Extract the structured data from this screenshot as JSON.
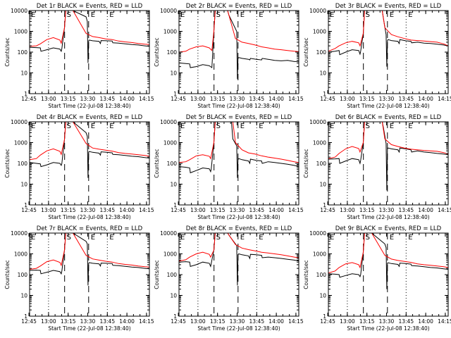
{
  "figure": {
    "panel_titles": [
      "Det 1r BLACK = Events, RED = LLD",
      "Det 2r BLACK = Events, RED = LLD",
      "Det 3r BLACK = Events, RED = LLD",
      "Det 4r BLACK = Events, RED = LLD",
      "Det 5r BLACK = Events, RED = LLD",
      "Det 6r BLACK = Events, RED = LLD",
      "Det 7r BLACK = Events, RED = LLD",
      "Det 8r BLACK = Events, RED = LLD",
      "Det 9r BLACK = Events, RED = LLD"
    ],
    "ylabel": "Counts/sec",
    "xlabel": "Start Time (22-Jul-08 12:38:40)",
    "xtick_labels": [
      "12:45",
      "13:00",
      "13:15",
      "13:30",
      "13:45",
      "14:00",
      "14:15"
    ],
    "ytick_labels": [
      "1",
      "10",
      "100",
      "1000",
      "10000"
    ]
  },
  "chart_data": {
    "type": "line",
    "y_scale": "log",
    "ylim": [
      1,
      10000
    ],
    "x_unit": "minutes after 12:38:40",
    "xlim": [
      6.8,
      98.5
    ],
    "xticks": [
      6.3,
      21.3,
      36.3,
      51.3,
      66.3,
      81.3,
      96.3
    ],
    "colors": {
      "events": "#000000",
      "lld": "#ff0000"
    },
    "markers": [
      {
        "x": 21.3,
        "style": "dotted",
        "label": ""
      },
      {
        "x": 33.6,
        "style": "dashed",
        "label": "S"
      },
      {
        "x": 52.0,
        "style": "dashed",
        "label": "E"
      },
      {
        "x": 66.3,
        "style": "dotted",
        "label": "E"
      }
    ],
    "panels": [
      {
        "detector": "1r",
        "events": {
          "x": [
            6.8,
            12,
            15,
            15.5,
            20,
            25,
            30,
            31,
            31.5,
            33.5,
            34.5,
            40,
            50,
            51,
            51.5,
            52,
            52.5,
            55,
            60,
            61,
            61.5,
            66,
            70,
            70.5,
            75,
            80,
            85,
            90,
            95,
            98.5
          ],
          "y": [
            170,
            165,
            160,
            110,
            130,
            160,
            140,
            110,
            150,
            1500,
            10000,
            10000,
            5000,
            3000,
            30,
            350,
            380,
            350,
            330,
            260,
            360,
            350,
            340,
            280,
            270,
            250,
            230,
            220,
            200,
            190
          ]
        },
        "lld": {
          "x": [
            6.8,
            12,
            15,
            20,
            25,
            30,
            31,
            33.5,
            34.5,
            40,
            50,
            55,
            60,
            65,
            70,
            75,
            80,
            85,
            90,
            95,
            98.5
          ],
          "y": [
            190,
            200,
            250,
            400,
            500,
            380,
            270,
            1500,
            10000,
            10000,
            800,
            560,
            500,
            430,
            400,
            340,
            310,
            290,
            260,
            240,
            230
          ]
        }
      },
      {
        "detector": "2r",
        "events": {
          "x": [
            6.8,
            12,
            15,
            15.5,
            20,
            25,
            30,
            32,
            33.5,
            34.5,
            44,
            45,
            51,
            51.5,
            52,
            52.5,
            55,
            60,
            61,
            61.5,
            66,
            70,
            70.5,
            75,
            80,
            85,
            90,
            95,
            98.5
          ],
          "y": [
            30,
            28,
            27,
            18,
            20,
            25,
            22,
            18,
            1000,
            10000,
            10000,
            6000,
            1000,
            5,
            50,
            55,
            50,
            45,
            42,
            50,
            45,
            42,
            50,
            45,
            40,
            38,
            40,
            35,
            35
          ]
        },
        "lld": {
          "x": [
            6.8,
            12,
            15,
            20,
            25,
            30,
            32,
            33.5,
            34.5,
            44,
            50,
            55,
            60,
            65,
            70,
            75,
            80,
            85,
            90,
            95,
            98.5
          ],
          "y": [
            100,
            110,
            140,
            180,
            200,
            160,
            120,
            1000,
            10000,
            10000,
            450,
            300,
            260,
            220,
            180,
            160,
            140,
            130,
            120,
            110,
            105
          ]
        }
      },
      {
        "detector": "3r",
        "events": {
          "x": [
            6.8,
            12,
            15,
            15.5,
            20,
            25,
            30,
            31,
            31.5,
            33.5,
            34.5,
            40,
            48,
            49,
            51,
            51.5,
            52,
            52.5,
            55,
            60,
            61,
            61.5,
            66,
            70,
            70.5,
            75,
            80,
            85,
            90,
            95,
            98.5
          ],
          "y": [
            100,
            110,
            120,
            75,
            100,
            130,
            120,
            80,
            110,
            800,
            10000,
            10000,
            10000,
            4000,
            700,
            20,
            350,
            400,
            360,
            330,
            260,
            400,
            350,
            330,
            280,
            300,
            270,
            260,
            240,
            220,
            200
          ]
        },
        "lld": {
          "x": [
            6.8,
            12,
            15,
            20,
            25,
            30,
            31,
            33.5,
            34.5,
            40,
            48,
            50,
            55,
            60,
            65,
            70,
            75,
            80,
            85,
            90,
            95,
            98.5
          ],
          "y": [
            110,
            150,
            200,
            280,
            330,
            280,
            200,
            800,
            10000,
            10000,
            10000,
            1500,
            700,
            550,
            450,
            380,
            360,
            340,
            320,
            300,
            250,
            200
          ]
        }
      },
      {
        "detector": "4r",
        "events": {
          "x": [
            6.8,
            12,
            15,
            15.5,
            20,
            25,
            30,
            31,
            31.5,
            33.5,
            34.5,
            40,
            50,
            51,
            51.5,
            52,
            52.5,
            55,
            60,
            61,
            61.5,
            66,
            70,
            70.5,
            75,
            80,
            85,
            90,
            95,
            98.5
          ],
          "y": [
            110,
            100,
            95,
            70,
            85,
            110,
            100,
            80,
            100,
            1400,
            10000,
            10000,
            3000,
            2000,
            20,
            350,
            370,
            340,
            310,
            250,
            360,
            340,
            320,
            270,
            260,
            240,
            220,
            210,
            190,
            180
          ]
        },
        "lld": {
          "x": [
            6.8,
            12,
            15,
            20,
            25,
            30,
            31,
            33.5,
            34.5,
            40,
            50,
            55,
            60,
            65,
            70,
            75,
            80,
            85,
            90,
            95,
            98.5
          ],
          "y": [
            150,
            170,
            250,
            400,
            500,
            380,
            270,
            1400,
            10000,
            10000,
            900,
            550,
            480,
            430,
            390,
            330,
            300,
            280,
            260,
            240,
            220
          ]
        }
      },
      {
        "detector": "5r",
        "events": {
          "x": [
            6.8,
            12,
            15,
            15.5,
            20,
            25,
            30,
            31,
            31.5,
            33.5,
            34.5,
            42,
            47,
            48,
            51,
            51.5,
            52,
            52.5,
            55,
            60,
            61,
            61.5,
            66,
            70,
            70.5,
            75,
            80,
            85,
            90,
            95,
            98.5
          ],
          "y": [
            70,
            65,
            60,
            35,
            45,
            60,
            55,
            40,
            55,
            1000,
            10000,
            10000,
            10000,
            1500,
            700,
            20,
            150,
            170,
            150,
            130,
            100,
            160,
            140,
            130,
            100,
            120,
            110,
            100,
            90,
            80,
            70
          ]
        },
        "lld": {
          "x": [
            6.8,
            12,
            15,
            20,
            25,
            30,
            31,
            33.5,
            34.5,
            42,
            48,
            50,
            55,
            60,
            65,
            70,
            75,
            80,
            85,
            90,
            95,
            98.5
          ],
          "y": [
            110,
            120,
            150,
            230,
            260,
            220,
            170,
            1000,
            10000,
            10000,
            10000,
            1000,
            450,
            320,
            280,
            230,
            200,
            180,
            160,
            140,
            120,
            110
          ]
        }
      },
      {
        "detector": "6r",
        "events": {
          "x": [
            6.8,
            12,
            15,
            15.5,
            20,
            25,
            30,
            31,
            31.5,
            33.5,
            34.5,
            40,
            48,
            49,
            51,
            51.5,
            52,
            52.5,
            55,
            60,
            61,
            61.5,
            66,
            70,
            70.5,
            75,
            80,
            85,
            90,
            95,
            98.5
          ],
          "y": [
            160,
            165,
            170,
            100,
            130,
            170,
            150,
            100,
            140,
            1000,
            10000,
            10000,
            10000,
            5000,
            900,
            5,
            500,
            550,
            500,
            450,
            350,
            550,
            500,
            450,
            350,
            400,
            350,
            330,
            300,
            280,
            260
          ]
        },
        "lld": {
          "x": [
            6.8,
            12,
            15,
            20,
            25,
            30,
            31,
            33.5,
            34.5,
            40,
            48,
            50,
            55,
            60,
            65,
            70,
            75,
            80,
            85,
            90,
            95,
            98.5
          ],
          "y": [
            170,
            200,
            300,
            500,
            650,
            520,
            350,
            1000,
            10000,
            10000,
            10000,
            1500,
            800,
            650,
            550,
            480,
            450,
            420,
            400,
            380,
            330,
            280
          ]
        }
      },
      {
        "detector": "7r",
        "events": {
          "x": [
            6.8,
            12,
            15,
            15.5,
            20,
            25,
            30,
            31,
            31.5,
            33.5,
            34.5,
            40,
            50,
            51,
            51.5,
            52,
            52.5,
            55,
            60,
            61,
            61.5,
            66,
            70,
            70.5,
            75,
            80,
            85,
            90,
            95,
            98.5
          ],
          "y": [
            160,
            165,
            160,
            110,
            130,
            160,
            140,
            110,
            150,
            1500,
            10000,
            10000,
            4000,
            3000,
            30,
            350,
            380,
            350,
            330,
            260,
            360,
            350,
            340,
            280,
            270,
            250,
            230,
            220,
            200,
            190
          ]
        },
        "lld": {
          "x": [
            6.8,
            12,
            15,
            20,
            25,
            30,
            31,
            33.5,
            34.5,
            40,
            50,
            55,
            60,
            65,
            70,
            75,
            80,
            85,
            90,
            95,
            98.5
          ],
          "y": [
            180,
            200,
            260,
            420,
            510,
            390,
            280,
            1500,
            10000,
            10000,
            850,
            570,
            500,
            440,
            400,
            340,
            310,
            290,
            260,
            240,
            230
          ]
        }
      },
      {
        "detector": "8r",
        "events": {
          "x": [
            6.8,
            12,
            15,
            15.5,
            20,
            25,
            30,
            31,
            31.5,
            33.5,
            34.5,
            44,
            45,
            51,
            51.5,
            52,
            52.5,
            55,
            60,
            61,
            61.5,
            66,
            70,
            70.5,
            75,
            80,
            85,
            90,
            95,
            98.5
          ],
          "y": [
            400,
            420,
            400,
            250,
            300,
            400,
            350,
            250,
            350,
            1500,
            10000,
            10000,
            8000,
            2500,
            30,
            900,
            1000,
            900,
            800,
            600,
            950,
            900,
            850,
            650,
            700,
            650,
            600,
            550,
            500,
            450
          ]
        },
        "lld": {
          "x": [
            6.8,
            12,
            15,
            20,
            25,
            30,
            31,
            33.5,
            34.5,
            44,
            50,
            55,
            60,
            65,
            70,
            75,
            80,
            85,
            90,
            95,
            98.5
          ],
          "y": [
            450,
            520,
            700,
            1000,
            1200,
            950,
            700,
            1500,
            10000,
            10000,
            2800,
            1900,
            1600,
            1400,
            1200,
            1100,
            1000,
            900,
            800,
            700,
            650
          ]
        }
      },
      {
        "detector": "9r",
        "events": {
          "x": [
            6.8,
            12,
            15,
            15.5,
            20,
            25,
            30,
            31,
            31.5,
            33.5,
            34.5,
            40,
            50,
            51,
            51.5,
            52,
            52.5,
            55,
            60,
            61,
            61.5,
            66,
            70,
            70.5,
            75,
            80,
            85,
            90,
            95,
            98.5
          ],
          "y": [
            110,
            105,
            100,
            75,
            90,
            110,
            100,
            80,
            100,
            1200,
            10000,
            10000,
            3000,
            2000,
            20,
            350,
            370,
            340,
            310,
            250,
            360,
            340,
            320,
            270,
            260,
            240,
            220,
            210,
            190,
            180
          ]
        },
        "lld": {
          "x": [
            6.8,
            12,
            15,
            20,
            25,
            30,
            31,
            33.5,
            34.5,
            40,
            50,
            55,
            60,
            65,
            70,
            75,
            80,
            85,
            90,
            95,
            98.5
          ],
          "y": [
            120,
            150,
            220,
            330,
            380,
            300,
            220,
            1200,
            10000,
            10000,
            850,
            560,
            480,
            430,
            390,
            330,
            300,
            280,
            260,
            240,
            220
          ]
        }
      }
    ]
  }
}
